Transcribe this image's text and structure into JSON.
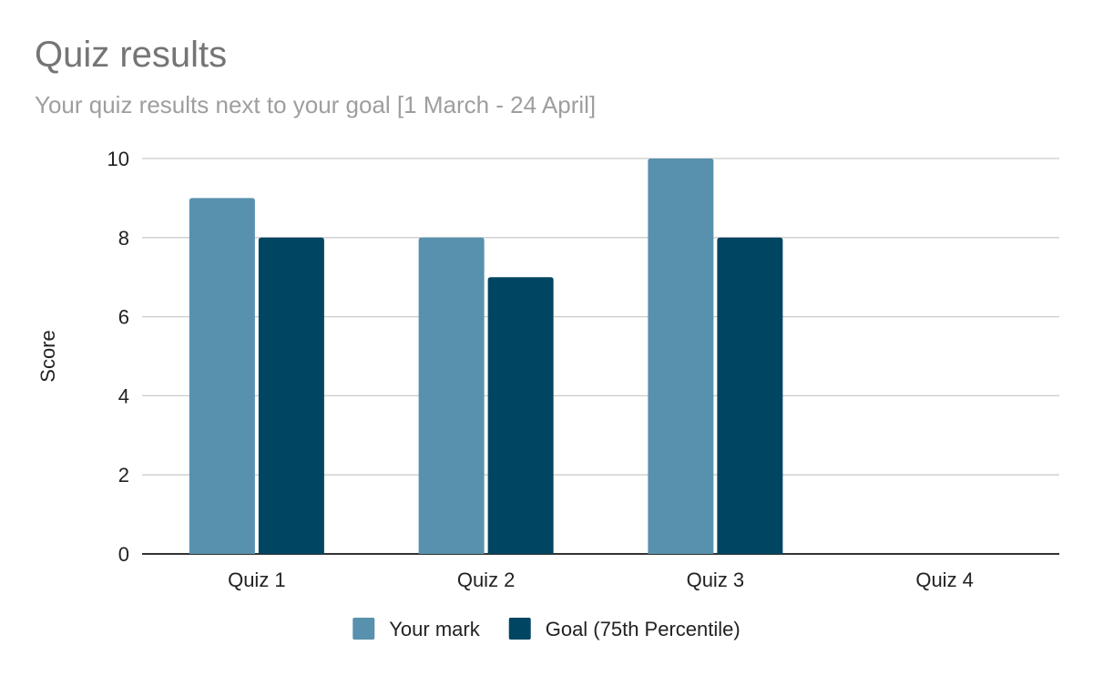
{
  "chart_data": {
    "type": "bar",
    "title": "Quiz results",
    "subtitle": "Your quiz results next to your goal [1 March - 24 April]",
    "ylabel": "Score",
    "xlabel": "",
    "ylim": [
      0,
      10
    ],
    "yticks": [
      0,
      2,
      4,
      6,
      8,
      10
    ],
    "grid": true,
    "legend_position": "bottom",
    "categories": [
      "Quiz 1",
      "Quiz 2",
      "Quiz 3",
      "Quiz 4"
    ],
    "series": [
      {
        "name": "Your mark",
        "color": "#5891ad",
        "values": [
          9,
          8,
          10,
          null
        ]
      },
      {
        "name": "Goal (75th Percentile)",
        "color": "#004561",
        "values": [
          8,
          7,
          8,
          null
        ]
      }
    ]
  }
}
